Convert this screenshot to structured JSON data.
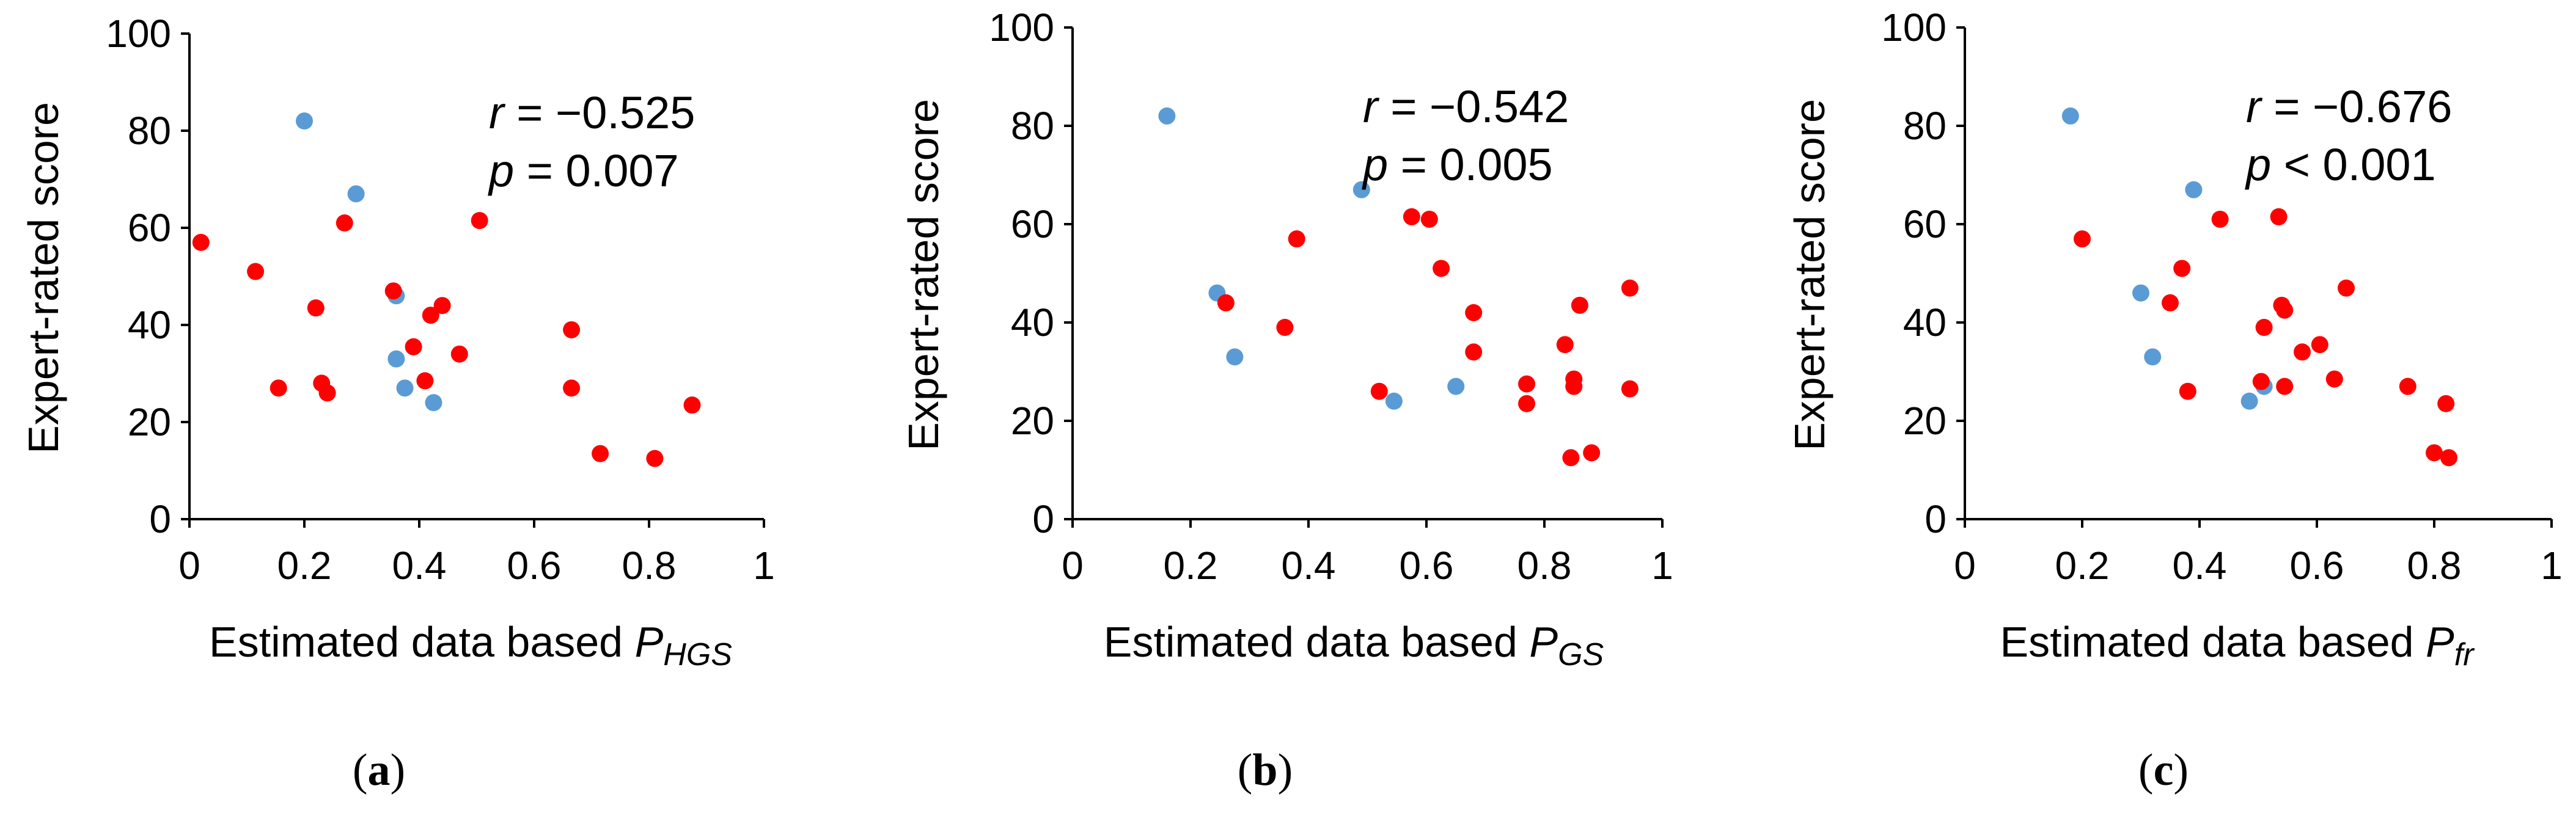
{
  "colors": {
    "blue": "#5b9bd5",
    "red": "#ff0000",
    "axis": "#000000"
  },
  "chart_data": [
    {
      "type": "scatter",
      "panel": "a",
      "caption_letter": "a",
      "ylabel": "Expert-rated score",
      "xlabel_prefix": "Estimated data based ",
      "xlabel_symbol": "P",
      "xlabel_subscript": "HGS",
      "xlim": [
        0,
        1
      ],
      "ylim": [
        0,
        100
      ],
      "x_ticks": [
        "0",
        "0.2",
        "0.4",
        "0.6",
        "0.8",
        "1"
      ],
      "y_ticks": [
        "0",
        "20",
        "40",
        "60",
        "80",
        "100"
      ],
      "r_symbol": "r",
      "r_value": " = −0.525",
      "p_symbol": "p",
      "p_value": " = 0.007",
      "series": [
        {
          "name": "blue",
          "x": [
            0.2,
            0.29,
            0.36,
            0.36,
            0.375,
            0.425
          ],
          "y": [
            82,
            67,
            46,
            33,
            27,
            24
          ]
        },
        {
          "name": "red",
          "x": [
            0.02,
            0.115,
            0.155,
            0.22,
            0.23,
            0.24,
            0.27,
            0.355,
            0.39,
            0.41,
            0.42,
            0.44,
            0.47,
            0.505,
            0.665,
            0.665,
            0.715,
            0.81,
            0.875
          ],
          "y": [
            57,
            51,
            27,
            43.5,
            28,
            26,
            61,
            47,
            35.5,
            28.5,
            42,
            44,
            34,
            61.5,
            39,
            27,
            13.5,
            12.5,
            23.5
          ]
        }
      ]
    },
    {
      "type": "scatter",
      "panel": "b",
      "caption_letter": "b",
      "ylabel": "Expert-rated score",
      "xlabel_prefix": "Estimated data based ",
      "xlabel_symbol": "P",
      "xlabel_subscript": "GS",
      "xlim": [
        0,
        1
      ],
      "ylim": [
        0,
        100
      ],
      "x_ticks": [
        "0",
        "0.2",
        "0.4",
        "0.6",
        "0.8",
        "1"
      ],
      "y_ticks": [
        "0",
        "20",
        "40",
        "60",
        "80",
        "100"
      ],
      "r_symbol": "r",
      "r_value": " = −0.542",
      "p_symbol": "p",
      "p_value": " = 0.005",
      "series": [
        {
          "name": "blue",
          "x": [
            0.16,
            0.245,
            0.275,
            0.49,
            0.545,
            0.65
          ],
          "y": [
            82,
            46,
            33,
            67,
            24,
            27
          ]
        },
        {
          "name": "red",
          "x": [
            0.26,
            0.36,
            0.38,
            0.52,
            0.575,
            0.605,
            0.625,
            0.68,
            0.68,
            0.77,
            0.77,
            0.835,
            0.845,
            0.85,
            0.85,
            0.86,
            0.88,
            0.945,
            0.945
          ],
          "y": [
            44,
            39,
            57,
            26,
            61.5,
            61,
            51,
            42,
            34,
            27.5,
            23.5,
            35.5,
            12.5,
            27,
            28.5,
            43.5,
            13.5,
            47,
            26.5
          ]
        }
      ]
    },
    {
      "type": "scatter",
      "panel": "c",
      "caption_letter": "c",
      "ylabel": "Expert-rated score",
      "xlabel_prefix": "Estimated data based ",
      "xlabel_symbol": "P",
      "xlabel_subscript": "fr",
      "xlim": [
        0,
        1
      ],
      "ylim": [
        0,
        100
      ],
      "x_ticks": [
        "0",
        "0.2",
        "0.4",
        "0.6",
        "0.8",
        "1"
      ],
      "y_ticks": [
        "0",
        "20",
        "40",
        "60",
        "80",
        "100"
      ],
      "r_symbol": "r",
      "r_value": " = −0.676",
      "p_symbol": "p",
      "p_value": " < 0.001",
      "series": [
        {
          "name": "blue",
          "x": [
            0.18,
            0.3,
            0.32,
            0.39,
            0.485,
            0.51
          ],
          "y": [
            82,
            46,
            33,
            67,
            24,
            27
          ]
        },
        {
          "name": "red",
          "x": [
            0.2,
            0.35,
            0.37,
            0.38,
            0.435,
            0.505,
            0.51,
            0.535,
            0.54,
            0.545,
            0.545,
            0.575,
            0.605,
            0.63,
            0.65,
            0.755,
            0.8,
            0.82,
            0.825
          ],
          "y": [
            57,
            44,
            51,
            26,
            61,
            28,
            39,
            61.5,
            43.5,
            42.5,
            27,
            34,
            35.5,
            28.5,
            47,
            27,
            13.5,
            23.5,
            12.5
          ]
        }
      ]
    }
  ]
}
